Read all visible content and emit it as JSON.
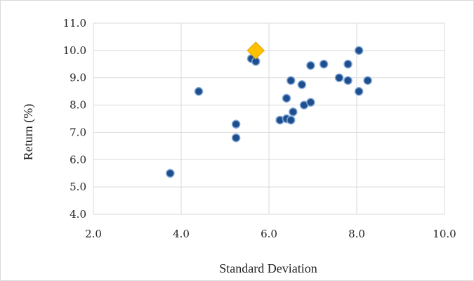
{
  "chart_data": {
    "type": "scatter",
    "title": "",
    "xlabel": "Standard Deviation",
    "ylabel": "Return (%)",
    "xlim": [
      2.0,
      10.0
    ],
    "ylim": [
      4.0,
      11.0
    ],
    "x_ticks": [
      "2.0",
      "4.0",
      "6.0",
      "8.0",
      "10.0"
    ],
    "y_ticks": [
      "4.0",
      "5.0",
      "6.0",
      "7.0",
      "8.0",
      "9.0",
      "10.0",
      "11.0"
    ],
    "grid": true,
    "legend": "none",
    "series": [
      {
        "color": "#1f4e8c",
        "marker": "circle",
        "points": [
          {
            "x": 3.75,
            "y": 5.5
          },
          {
            "x": 4.4,
            "y": 8.5
          },
          {
            "x": 5.25,
            "y": 7.3
          },
          {
            "x": 5.25,
            "y": 6.8
          },
          {
            "x": 5.6,
            "y": 9.7
          },
          {
            "x": 5.7,
            "y": 9.6
          },
          {
            "x": 6.25,
            "y": 7.45
          },
          {
            "x": 6.4,
            "y": 7.5
          },
          {
            "x": 6.4,
            "y": 8.25
          },
          {
            "x": 6.5,
            "y": 8.9
          },
          {
            "x": 6.5,
            "y": 7.45
          },
          {
            "x": 6.55,
            "y": 7.75
          },
          {
            "x": 6.75,
            "y": 8.75
          },
          {
            "x": 6.8,
            "y": 8.0
          },
          {
            "x": 6.95,
            "y": 9.45
          },
          {
            "x": 6.95,
            "y": 8.1
          },
          {
            "x": 7.25,
            "y": 9.5
          },
          {
            "x": 7.6,
            "y": 9.0
          },
          {
            "x": 7.8,
            "y": 9.5
          },
          {
            "x": 7.8,
            "y": 8.9
          },
          {
            "x": 8.05,
            "y": 10.0
          },
          {
            "x": 8.05,
            "y": 8.5
          },
          {
            "x": 8.25,
            "y": 8.9
          }
        ]
      },
      {
        "color": "#ffc000",
        "marker": "diamond",
        "points": [
          {
            "x": 5.7,
            "y": 10.0
          }
        ]
      }
    ]
  }
}
